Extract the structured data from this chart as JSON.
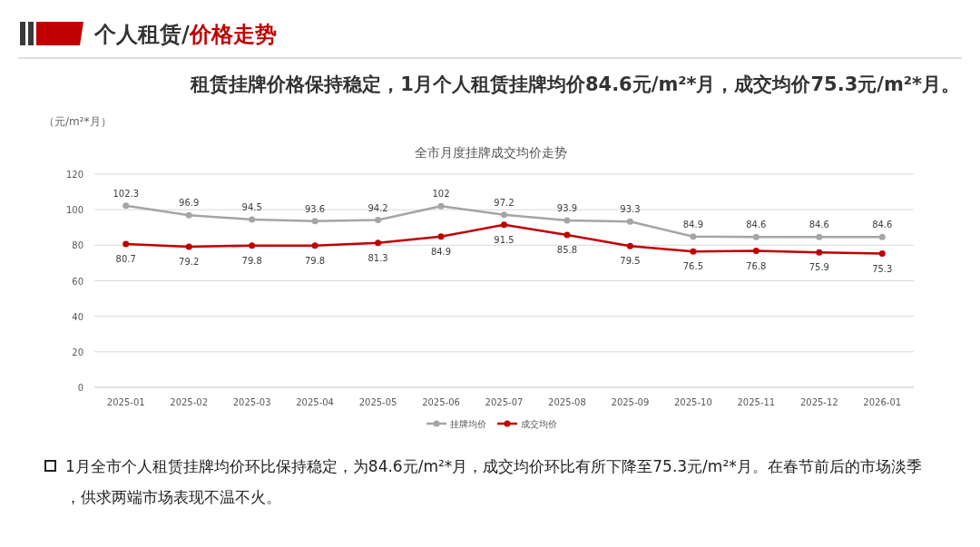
{
  "chart_data": {
    "type": "line",
    "title": "全市月度挂牌成交均价走势",
    "subtitle": "租赁挂牌价格保持稳定，1月个人租赁挂牌均价84.6元/m²*月，成交均价75.3元/m²*月。",
    "ylabel": "（元/m²*月）",
    "annotations": [
      "个人租赁/价格走势",
      "1月全市个人租赁挂牌均价环比保持稳定，为84.6元/m²*月，成交均价环比有所下降至75.3元/m²*月。在春节前后的市场淡季，供求两端市场表现不温不火。"
    ],
    "categories": [
      "2025-01",
      "2025-02",
      "2025-03",
      "2025-04",
      "2025-05",
      "2025-06",
      "2025-07",
      "2025-08",
      "2025-09",
      "2025-10",
      "2025-11",
      "2025-12",
      "2026-01"
    ],
    "series": [
      {
        "name": "挂牌均价",
        "color": "#a5a5a5",
        "values": [
          102.3,
          96.9,
          94.5,
          93.6,
          94.2,
          102,
          97.2,
          93.9,
          93.3,
          84.9,
          84.6,
          84.6,
          84.6
        ]
      },
      {
        "name": "成交均价",
        "color": "#c00000",
        "values": [
          80.7,
          79.2,
          79.8,
          79.8,
          81.3,
          84.9,
          91.5,
          85.8,
          79.5,
          76.5,
          76.8,
          75.9,
          75.3
        ]
      }
    ],
    "ylim": [
      0,
      120
    ],
    "yticks": [
      0,
      20,
      40,
      60,
      80,
      100,
      120
    ],
    "grid": "y",
    "legend": "bottom",
    "marker": "circle",
    "line_style": "solid",
    "data_labels": true
  }
}
